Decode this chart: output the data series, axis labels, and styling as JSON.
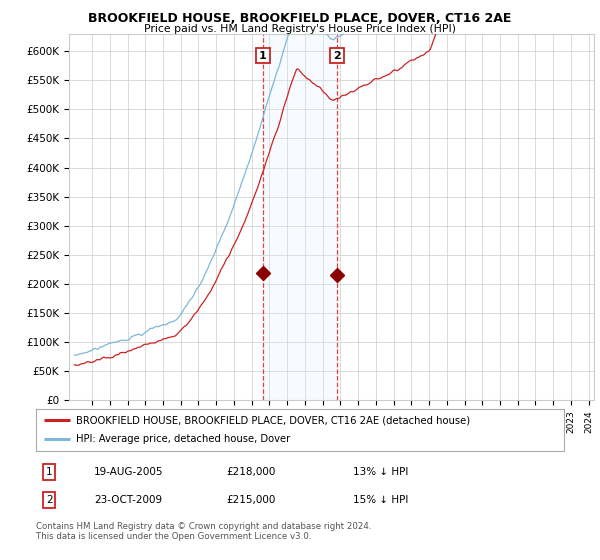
{
  "title": "BROOKFIELD HOUSE, BROOKFIELD PLACE, DOVER, CT16 2AE",
  "subtitle": "Price paid vs. HM Land Registry's House Price Index (HPI)",
  "hpi_color": "#7eb8d9",
  "price_color": "#cc2222",
  "marker_color": "#8b0000",
  "bg_color": "#ffffff",
  "grid_color": "#cccccc",
  "highlight_color": "#ddeeff",
  "yticks": [
    0,
    50000,
    100000,
    150000,
    200000,
    250000,
    300000,
    350000,
    400000,
    450000,
    500000,
    550000,
    600000
  ],
  "ylabels": [
    "£0",
    "£50K",
    "£100K",
    "£150K",
    "£200K",
    "£250K",
    "£300K",
    "£350K",
    "£400K",
    "£450K",
    "£500K",
    "£550K",
    "£600K"
  ],
  "xstart": 1995,
  "xend": 2025,
  "transactions": [
    {
      "date": 2005.63,
      "price": 218000,
      "label": "1"
    },
    {
      "date": 2009.81,
      "price": 215000,
      "label": "2"
    }
  ],
  "legend_entries": [
    {
      "label": "BROOKFIELD HOUSE, BROOKFIELD PLACE, DOVER, CT16 2AE (detached house)",
      "color": "#cc2222"
    },
    {
      "label": "HPI: Average price, detached house, Dover",
      "color": "#7eb8d9"
    }
  ],
  "table_rows": [
    {
      "num": "1",
      "date": "19-AUG-2005",
      "price": "£218,000",
      "change": "13% ↓ HPI"
    },
    {
      "num": "2",
      "date": "23-OCT-2009",
      "price": "£215,000",
      "change": "15% ↓ HPI"
    }
  ],
  "footer": "Contains HM Land Registry data © Crown copyright and database right 2024.\nThis data is licensed under the Open Government Licence v3.0."
}
